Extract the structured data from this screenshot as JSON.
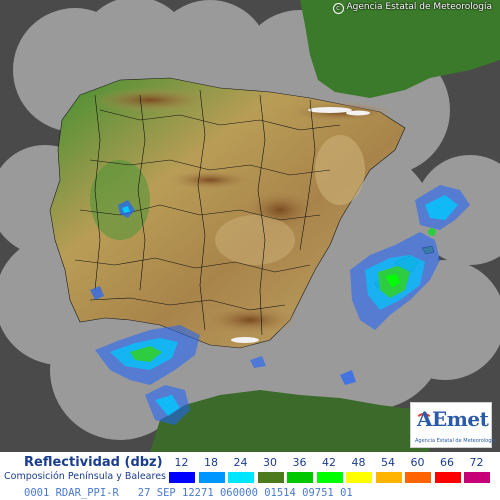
{
  "copyright": "Agencia Estatal de Meteorología",
  "logo": {
    "name": "AEmet",
    "subtitle": "Agencia Estatal de Meteorología"
  },
  "legend": {
    "title": "Reflectividad (dbz)",
    "subtitle": "Composición Península y Baleares",
    "scale": [
      {
        "value": "12",
        "color": "#0000ff"
      },
      {
        "value": "18",
        "color": "#0096ff"
      },
      {
        "value": "24",
        "color": "#00e6ff"
      },
      {
        "value": "30",
        "color": "#4e7a1e"
      },
      {
        "value": "36",
        "color": "#00c800"
      },
      {
        "value": "42",
        "color": "#00ff00"
      },
      {
        "value": "48",
        "color": "#ffff00"
      },
      {
        "value": "54",
        "color": "#ffb400"
      },
      {
        "value": "60",
        "color": "#ff6400"
      },
      {
        "value": "66",
        "color": "#ff0000"
      },
      {
        "value": "72",
        "color": "#c80078"
      }
    ]
  },
  "status_line": "0001 RDAR_PPI-R   27 SEP 12271 060000 01514 09751 01",
  "colors": {
    "sea": "#4a4a4a",
    "coverage": "#9a9a9a",
    "land_low": "#3e8a2e",
    "land_mid": "#b89a52",
    "land_high": "#8a5a2a",
    "borders": "#000000"
  }
}
